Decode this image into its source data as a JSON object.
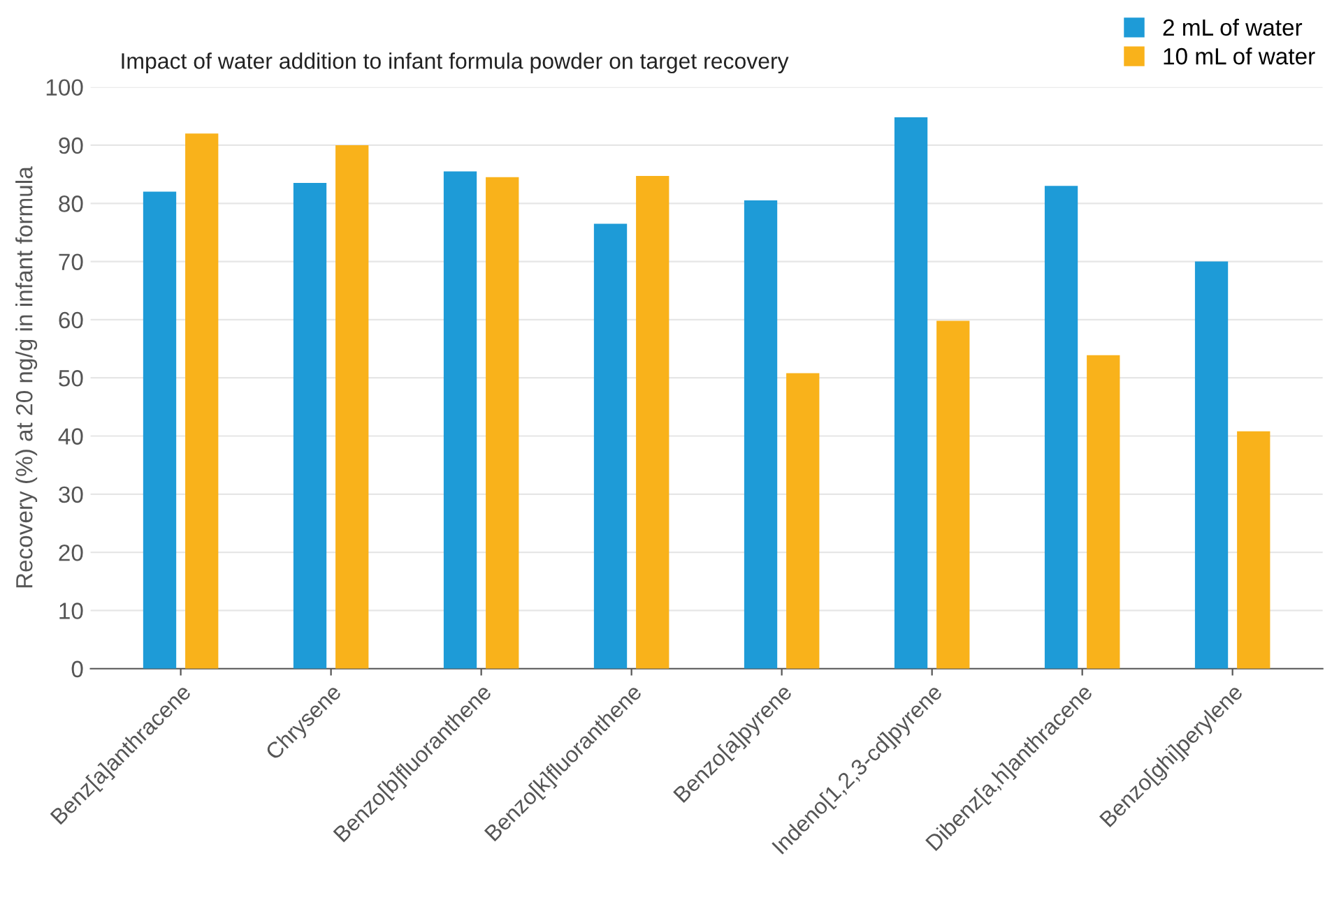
{
  "chart_data": {
    "type": "bar",
    "title": "Impact of water addition to infant formula powder on target recovery",
    "ylabel": "Recovery (%) at 20 ng/g in infant formula",
    "categories": [
      "Benz[a]anthracene",
      "Chrysene",
      "Benzo[b]fluoranthene",
      "Benzo[k]fluoranthene",
      "Benzo[a]pyrene",
      "Indeno[1,2,3-cd]pyrene",
      "Dibenz[a,h]anthracene",
      "Benzo[ghi]perylene"
    ],
    "series": [
      {
        "name": "2 mL of water",
        "color": "#1e9bd7",
        "values": [
          82,
          83.5,
          85.5,
          76.5,
          80.5,
          94.8,
          83,
          70
        ]
      },
      {
        "name": "10 mL of water",
        "color": "#f9b21b",
        "values": [
          92,
          90,
          84.5,
          84.7,
          50.8,
          59.8,
          53.9,
          40.8
        ]
      }
    ],
    "ylim": [
      0,
      100
    ],
    "yticks": [
      0,
      10,
      20,
      30,
      40,
      50,
      60,
      70,
      80,
      90,
      100
    ],
    "grid": "y",
    "legend": "top right"
  }
}
